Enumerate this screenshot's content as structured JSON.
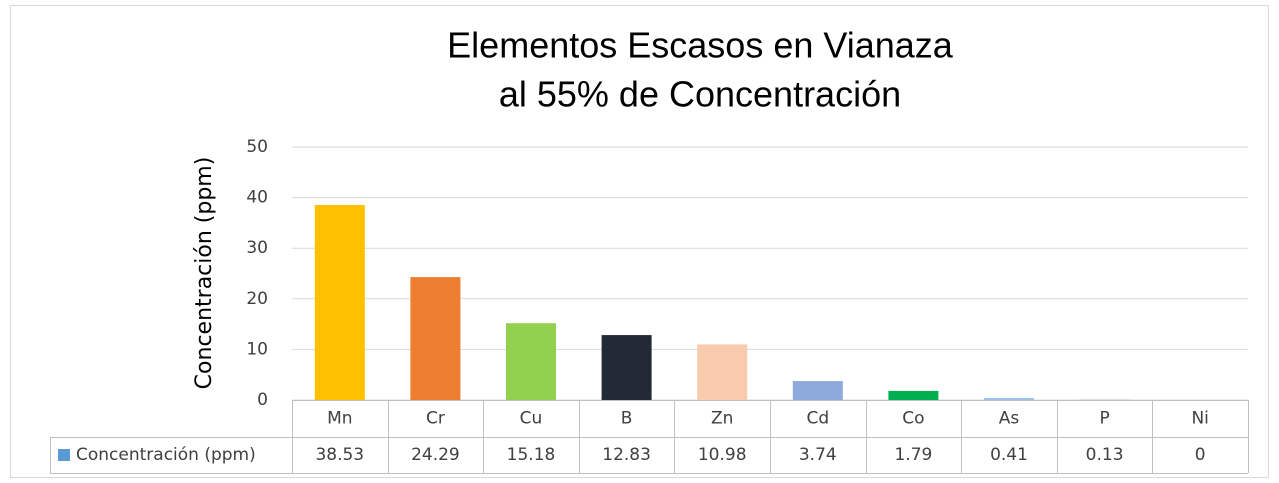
{
  "chart_data": {
    "type": "bar",
    "title": [
      "Elementos Escasos en Vianaza",
      "al 55% de Concentración"
    ],
    "ylabel": "Concentración (ppm)",
    "categories": [
      "Mn",
      "Cr",
      "Cu",
      "B",
      "Zn",
      "Cd",
      "Co",
      "As",
      "P",
      "Ni"
    ],
    "series": [
      {
        "name": "Concentración (ppm)",
        "color": "#5B9BD5",
        "values": [
          38.53,
          24.29,
          15.18,
          12.83,
          10.98,
          3.74,
          1.79,
          0.41,
          0.13,
          0
        ],
        "colors": [
          "#FFC000",
          "#ED7D31",
          "#92D050",
          "#222A35",
          "#F8CBAD",
          "#8EA9DB",
          "#00B050",
          "#9DC3E6",
          "#D0CECE",
          "#A5A5A5"
        ]
      }
    ],
    "ylim": [
      0,
      50
    ],
    "yticks": [
      0,
      10,
      20,
      30,
      40,
      50
    ],
    "grid": true,
    "data_table": true
  }
}
